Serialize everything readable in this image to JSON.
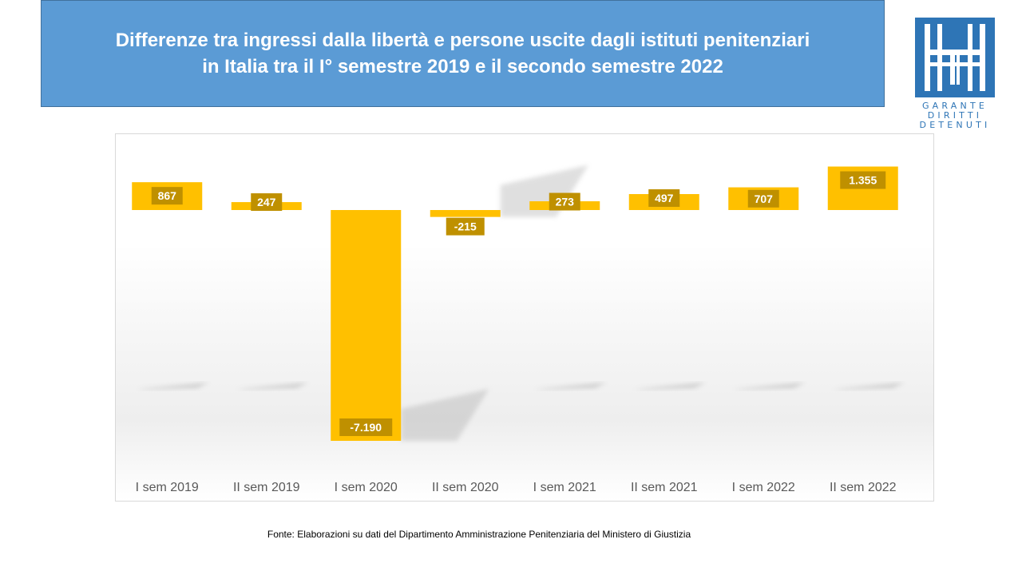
{
  "title": {
    "line1": "Differenze tra ingressi dalla libertà e persone uscite dagli istituti penitenziari",
    "line2": "in Italia tra il I° semestre 2019 e il secondo semestre 2022"
  },
  "logo": {
    "line1": "GARANTE",
    "line2": "DIRITTI",
    "line3": "DETENUTI",
    "color": "#2e75b6"
  },
  "source": "Fonte: Elaborazioni su dati del Dipartimento  Amministrazione Penitenziaria del  Ministero di Giustizia",
  "chart_data": {
    "type": "bar",
    "categories": [
      "I sem 2019",
      "II sem 2019",
      "I sem 2020",
      "II sem 2020",
      "I sem 2021",
      "II sem 2021",
      "I sem 2022",
      "II sem 2022"
    ],
    "values": [
      867,
      247,
      -7190,
      -215,
      273,
      497,
      707,
      1355
    ],
    "data_labels": [
      "867",
      "247",
      "-7.190",
      "-215",
      "273",
      "497",
      "707",
      "1.355"
    ],
    "bar_color": "#ffc000",
    "label_bg_color": "#bf9000",
    "grid": false,
    "legend": "none"
  }
}
